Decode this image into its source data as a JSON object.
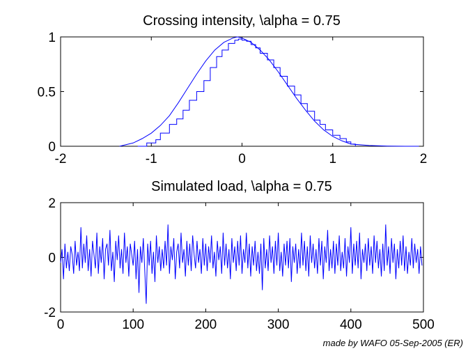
{
  "credit": "made by WAFO 05-Sep-2005 (ER)",
  "colors": {
    "line": "#0000ff",
    "axes": "#000000",
    "background": "#ffffff"
  },
  "chart_data": [
    {
      "type": "line",
      "title": "Crossing intensity, \\alpha = 0.75",
      "xlabel": "",
      "ylabel": "",
      "xlim": [
        -2,
        2
      ],
      "ylim": [
        0,
        1
      ],
      "xticks": [
        -2,
        -1,
        0,
        1,
        2
      ],
      "yticks": [
        0,
        0.5,
        1
      ],
      "xtick_labels": [
        "-2",
        "-1",
        "0",
        "1",
        "2"
      ],
      "ytick_labels": [
        "0",
        "0.5",
        "1"
      ],
      "grid": false,
      "legend": "none",
      "series": [
        {
          "kind": "smooth",
          "x": [
            -1.35,
            -1.2,
            -1.1,
            -1.0,
            -0.9,
            -0.8,
            -0.7,
            -0.6,
            -0.5,
            -0.4,
            -0.3,
            -0.2,
            -0.1,
            -0.05,
            0,
            0.1,
            0.2,
            0.3,
            0.4,
            0.5,
            0.6,
            0.7,
            0.8,
            0.9,
            1.0,
            1.1,
            1.2,
            1.4,
            1.6,
            1.8,
            1.95
          ],
          "y": [
            0.0,
            0.03,
            0.07,
            0.12,
            0.19,
            0.28,
            0.4,
            0.53,
            0.66,
            0.78,
            0.88,
            0.95,
            0.99,
            1.0,
            0.99,
            0.95,
            0.88,
            0.79,
            0.68,
            0.56,
            0.44,
            0.33,
            0.23,
            0.15,
            0.09,
            0.05,
            0.02,
            0.007,
            0.002,
            0.0,
            0.0
          ]
        },
        {
          "kind": "staircase",
          "x": [
            -1.15,
            -1.05,
            -0.95,
            -0.9,
            -0.8,
            -0.72,
            -0.65,
            -0.58,
            -0.5,
            -0.42,
            -0.35,
            -0.28,
            -0.22,
            -0.15,
            -0.08,
            -0.04,
            0.0,
            0.05,
            0.1,
            0.15,
            0.2,
            0.28,
            0.35,
            0.42,
            0.5,
            0.58,
            0.65,
            0.72,
            0.8,
            0.86,
            0.92,
            1.0,
            1.08,
            1.15,
            1.2,
            1.25
          ],
          "y": [
            0.0,
            0.03,
            0.06,
            0.12,
            0.2,
            0.25,
            0.33,
            0.42,
            0.5,
            0.6,
            0.72,
            0.82,
            0.88,
            0.94,
            0.97,
            0.98,
            0.97,
            0.96,
            0.93,
            0.9,
            0.85,
            0.79,
            0.72,
            0.64,
            0.55,
            0.47,
            0.39,
            0.32,
            0.24,
            0.2,
            0.15,
            0.1,
            0.07,
            0.04,
            0.02,
            0.0
          ]
        }
      ]
    },
    {
      "type": "line",
      "title": "Simulated load, \\alpha = 0.75",
      "xlabel": "",
      "ylabel": "",
      "xlim": [
        0,
        500
      ],
      "ylim": [
        -2,
        2
      ],
      "xticks": [
        0,
        100,
        200,
        300,
        400,
        500
      ],
      "yticks": [
        -2,
        0,
        2
      ],
      "xtick_labels": [
        "0",
        "100",
        "200",
        "300",
        "400",
        "500"
      ],
      "ytick_labels": [
        "-2",
        "0",
        "2"
      ],
      "grid": false,
      "legend": "none",
      "series": [
        {
          "kind": "noise",
          "x_start": 0,
          "x_step": 2,
          "y": [
            -0.2,
            0.3,
            -0.8,
            0.5,
            -0.4,
            0.2,
            -0.5,
            0.4,
            0.1,
            -0.6,
            0.6,
            -0.3,
            0.2,
            -0.5,
            1.1,
            -0.4,
            0.5,
            -0.2,
            0.8,
            -0.5,
            0.3,
            -0.7,
            0.6,
            0.1,
            -0.4,
            0.9,
            -0.6,
            0.4,
            -0.2,
            0.7,
            -0.8,
            0.3,
            0.5,
            -0.3,
            1.0,
            -0.5,
            0.2,
            -0.9,
            0.6,
            -0.1,
            0.8,
            -0.4,
            0.3,
            -0.6,
            0.9,
            -0.2,
            0.4,
            -0.7,
            0.5,
            0.1,
            -0.3,
            0.6,
            -0.8,
            0.3,
            -1.3,
            0.4,
            -0.2,
            0.7,
            -0.5,
            -1.7,
            0.5,
            -0.3,
            0.6,
            -0.6,
            0.2,
            -0.9,
            0.8,
            -0.2,
            0.4,
            -0.5,
            0.3,
            -0.4,
            0.6,
            -0.3,
            1.2,
            -0.6,
            0.4,
            -0.1,
            0.7,
            -0.8,
            0.2,
            0.5,
            -0.4,
            0.9,
            -0.2,
            0.3,
            -0.7,
            0.6,
            -0.3,
            0.5,
            -0.5,
            0.8,
            0.1,
            -0.4,
            0.6,
            -0.2,
            0.3,
            -0.6,
            0.7,
            -0.3,
            0.5,
            -0.5,
            0.4,
            -0.2,
            0.8,
            -0.4,
            0.2,
            -0.7,
            0.6,
            -0.1,
            0.4,
            -0.6,
            0.9,
            -0.3,
            0.5,
            -0.4,
            0.3,
            -0.8,
            0.7,
            -0.2,
            0.4,
            -0.5,
            0.6,
            -0.3,
            0.8,
            -0.6,
            0.3,
            -0.2,
            0.9,
            -0.4,
            0.5,
            -0.7,
            0.4,
            -0.3,
            0.6,
            -0.5,
            0.2,
            -0.6,
            0.5,
            -1.2,
            0.7,
            -0.4,
            0.3,
            -0.5,
            0.8,
            -0.2,
            0.4,
            -0.6,
            0.6,
            -0.3,
            0.9,
            -0.5,
            0.2,
            -0.7,
            0.5,
            -0.3,
            0.6,
            -0.4,
            0.7,
            -0.9,
            0.4,
            -0.2,
            0.5,
            -0.6,
            0.3,
            -0.4,
            0.9,
            -0.3,
            0.6,
            -0.5,
            0.4,
            -0.7,
            0.8,
            -0.2,
            0.5,
            -0.4,
            0.3,
            -0.6,
            0.7,
            -0.3,
            0.6,
            -0.8,
            0.4,
            -0.2,
            1.0,
            -0.5,
            0.3,
            -0.4,
            0.6,
            -0.6,
            0.5,
            -0.3,
            0.8,
            -0.5,
            0.2,
            -0.4,
            0.7,
            -0.7,
            0.4,
            -0.2,
            1.1,
            -0.6,
            0.5,
            -0.3,
            0.6,
            -0.4,
            0.9,
            -0.8,
            0.3,
            -0.2,
            0.5,
            -0.5,
            0.7,
            -0.3,
            0.4,
            -0.6,
            0.8,
            -0.2,
            0.6,
            -0.4,
            0.3,
            -0.7,
            0.5,
            -0.5,
            1.2,
            -0.3,
            0.4,
            -0.6,
            0.7,
            -0.2,
            0.5,
            -0.8,
            0.3,
            -0.4,
            0.6,
            -0.3,
            0.8,
            -0.5,
            0.4,
            -0.6,
            0.2,
            -0.3,
            0.7,
            -0.4,
            0.5,
            -0.2,
            0.3,
            -0.6,
            0.4,
            -0.3
          ]
        }
      ]
    }
  ]
}
